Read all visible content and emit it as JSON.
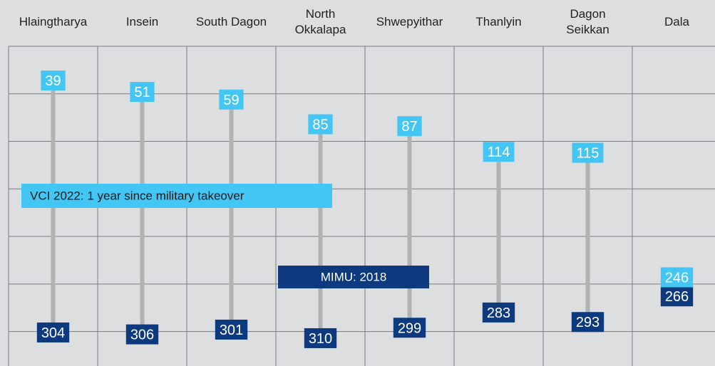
{
  "chart_data": {
    "type": "dumbbell",
    "categories": [
      "Hlaingtharya",
      "Insein",
      "South Dagon",
      "North Okkalapa",
      "Shwepyithar",
      "Thanlyin",
      "Dagon Seikkan",
      "Dala"
    ],
    "series": [
      {
        "name": "VCI 2022: 1 year since military takeover",
        "color": "#43c6f3",
        "values": [
          39,
          51,
          59,
          85,
          87,
          114,
          115,
          246
        ]
      },
      {
        "name": "MIMU: 2018",
        "color": "#0d3a7e",
        "values": [
          304,
          306,
          301,
          310,
          299,
          283,
          293,
          266
        ]
      }
    ],
    "ylim": [
      0,
      340
    ],
    "yticks": [
      0,
      50,
      100,
      150,
      200,
      250,
      300
    ],
    "grid": true,
    "y_inverted": true
  }
}
